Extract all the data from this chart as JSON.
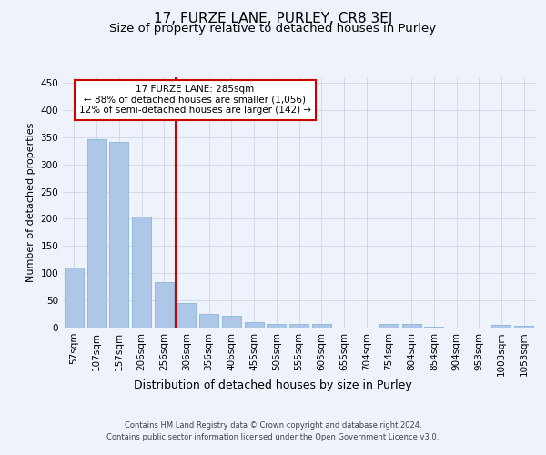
{
  "title": "17, FURZE LANE, PURLEY, CR8 3EJ",
  "subtitle": "Size of property relative to detached houses in Purley",
  "xlabel": "Distribution of detached houses by size in Purley",
  "ylabel": "Number of detached properties",
  "categories": [
    "57sqm",
    "107sqm",
    "157sqm",
    "206sqm",
    "256sqm",
    "306sqm",
    "356sqm",
    "406sqm",
    "455sqm",
    "505sqm",
    "555sqm",
    "605sqm",
    "655sqm",
    "704sqm",
    "754sqm",
    "804sqm",
    "854sqm",
    "904sqm",
    "953sqm",
    "1003sqm",
    "1053sqm"
  ],
  "values": [
    110,
    347,
    341,
    204,
    84,
    46,
    25,
    21,
    10,
    7,
    6,
    6,
    0,
    0,
    7,
    7,
    1,
    0,
    0,
    5,
    4
  ],
  "bar_color": "#aec6e8",
  "bar_edgecolor": "#7aafd4",
  "background_color": "#eef2fa",
  "grid_color": "#c8cfe0",
  "annotation_line1": "17 FURZE LANE: 285sqm",
  "annotation_line2": "← 88% of detached houses are smaller (1,056)",
  "annotation_line3": "12% of semi-detached houses are larger (142) →",
  "annotation_box_color": "#ffffff",
  "annotation_box_edgecolor": "#cc0000",
  "vline_color": "#cc0000",
  "vline_x": 4.5,
  "ylim": [
    0,
    460
  ],
  "yticks": [
    0,
    50,
    100,
    150,
    200,
    250,
    300,
    350,
    400,
    450
  ],
  "title_fontsize": 11,
  "subtitle_fontsize": 9.5,
  "xlabel_fontsize": 9,
  "ylabel_fontsize": 8,
  "tick_fontsize": 7.5,
  "annot_fontsize": 7.5,
  "footer_line1": "Contains HM Land Registry data © Crown copyright and database right 2024.",
  "footer_line2": "Contains public sector information licensed under the Open Government Licence v3.0."
}
